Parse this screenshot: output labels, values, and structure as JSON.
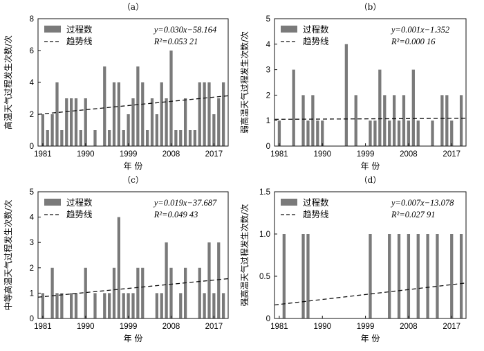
{
  "chart_data": [
    {
      "type": "bar",
      "panel_label": "（a）",
      "ylabel": "高温天气过程发生次数/次",
      "xlabel": "年  份",
      "ylim": [
        0,
        8
      ],
      "yticks": [
        "0",
        "2",
        "4",
        "6",
        "8"
      ],
      "xticks": [
        "1981",
        "1990",
        "1999",
        "2008",
        "2017"
      ],
      "legend": [
        "过程数",
        "趋势线"
      ],
      "equation": "y=0.030x−58.164",
      "r2": "R²=0.053 21",
      "years": [
        1981,
        1982,
        1983,
        1984,
        1985,
        1986,
        1987,
        1988,
        1989,
        1990,
        1991,
        1992,
        1993,
        1994,
        1995,
        1996,
        1997,
        1998,
        1999,
        2000,
        2001,
        2002,
        2003,
        2004,
        2005,
        2006,
        2007,
        2008,
        2009,
        2010,
        2011,
        2012,
        2013,
        2014,
        2015,
        2016,
        2017,
        2018,
        2019
      ],
      "values": [
        2,
        1,
        2,
        4,
        1,
        3,
        3,
        3,
        1,
        3,
        0,
        1,
        0,
        5,
        1,
        4,
        4,
        1,
        2,
        3,
        5,
        4,
        1,
        3,
        2,
        4,
        3,
        6,
        1,
        1,
        3,
        1,
        1,
        4,
        4,
        4,
        2,
        3,
        4
      ],
      "trend": [
        1.99,
        3.16
      ]
    },
    {
      "type": "bar",
      "panel_label": "（b）",
      "ylabel": "弱高温天气过程发生次数/次",
      "xlabel": "年  份",
      "ylim": [
        0,
        5
      ],
      "yticks": [
        "0",
        "1",
        "2",
        "3",
        "4",
        "5"
      ],
      "xticks": [
        "1981",
        "1990",
        "1999",
        "2008",
        "2017"
      ],
      "legend": [
        "过程数",
        "趋势线"
      ],
      "equation": "y=0.001x−1.352",
      "r2": "R²=0.000 16",
      "years": [
        1981,
        1982,
        1983,
        1984,
        1985,
        1986,
        1987,
        1988,
        1989,
        1990,
        1991,
        1992,
        1993,
        1994,
        1995,
        1996,
        1997,
        1998,
        1999,
        2000,
        2001,
        2002,
        2003,
        2004,
        2005,
        2006,
        2007,
        2008,
        2009,
        2010,
        2011,
        2012,
        2013,
        2014,
        2015,
        2016,
        2017,
        2018,
        2019
      ],
      "values": [
        1,
        0,
        0,
        3,
        0,
        2,
        1,
        2,
        1,
        1,
        0,
        0,
        0,
        0,
        4,
        0,
        2,
        0,
        0,
        1,
        1,
        3,
        2,
        1,
        2,
        1,
        2,
        1,
        3,
        1,
        0,
        0,
        1,
        0,
        2,
        2,
        1,
        0,
        2
      ],
      "trend": [
        1.05,
        1.09
      ]
    },
    {
      "type": "bar",
      "panel_label": "（c）",
      "ylabel": "中等高温天气过程发生次数/次",
      "xlabel": "年  份",
      "ylim": [
        0,
        5
      ],
      "yticks": [
        "0",
        "1",
        "2",
        "3",
        "4",
        "5"
      ],
      "xticks": [
        "1981",
        "1990",
        "1999",
        "2008",
        "2017"
      ],
      "legend": [
        "过程数",
        "趋势线"
      ],
      "equation": "y=0.019x−37.687",
      "r2": "R²=0.049 43",
      "years": [
        1981,
        1982,
        1983,
        1984,
        1985,
        1986,
        1987,
        1988,
        1989,
        1990,
        1991,
        1992,
        1993,
        1994,
        1995,
        1996,
        1997,
        1998,
        1999,
        2000,
        2001,
        2002,
        2003,
        2004,
        2005,
        2006,
        2007,
        2008,
        2009,
        2010,
        2011,
        2012,
        2013,
        2014,
        2015,
        2016,
        2017,
        2018,
        2019
      ],
      "values": [
        1,
        0,
        2,
        1,
        1,
        0,
        1,
        1,
        0,
        2,
        0,
        1,
        0,
        1,
        1,
        2,
        4,
        1,
        1,
        1,
        2,
        2,
        0,
        0,
        1,
        1,
        3,
        2,
        0,
        1,
        2,
        0,
        0,
        2,
        1,
        3,
        1,
        3,
        1
      ],
      "trend": [
        0.84,
        1.57
      ]
    },
    {
      "type": "bar",
      "panel_label": "（d）",
      "ylabel": "强高温天气过程发生次数/次",
      "xlabel": "年  份",
      "ylim": [
        0,
        1.5
      ],
      "yticks": [
        "0",
        "0.5",
        "1.0",
        "1.5"
      ],
      "xticks": [
        "1981",
        "1990",
        "1999",
        "2008",
        "2017"
      ],
      "legend": [
        "过程数",
        "趋势线"
      ],
      "equation": "y=0.007x−13.078",
      "r2": "R²=0.027 91",
      "years": [
        1981,
        1982,
        1983,
        1984,
        1985,
        1986,
        1987,
        1988,
        1989,
        1990,
        1991,
        1992,
        1993,
        1994,
        1995,
        1996,
        1997,
        1998,
        1999,
        2000,
        2001,
        2002,
        2003,
        2004,
        2005,
        2006,
        2007,
        2008,
        2009,
        2010,
        2011,
        2012,
        2013,
        2014,
        2015,
        2016,
        2017,
        2018,
        2019
      ],
      "values": [
        0,
        1,
        0,
        0,
        0,
        1,
        1,
        0,
        0,
        0,
        0,
        0,
        0,
        0,
        0,
        0,
        0,
        0,
        0,
        1,
        0,
        0,
        0,
        1,
        0,
        1,
        0,
        1,
        0,
        1,
        0,
        1,
        0,
        1,
        0,
        0,
        1,
        0,
        1
      ],
      "trend": [
        0.16,
        0.42
      ]
    }
  ]
}
